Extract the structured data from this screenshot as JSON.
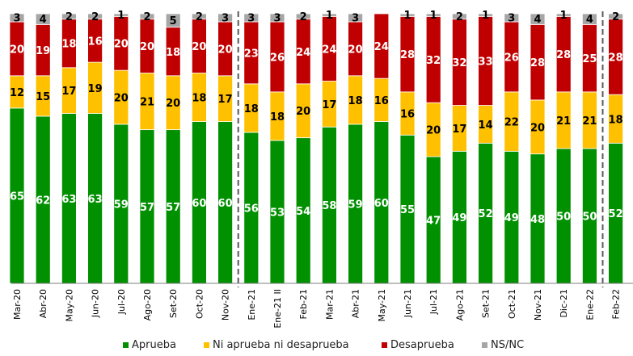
{
  "chart_data": {
    "type": "bar",
    "stacked": true,
    "orientation": "vertical",
    "title": "",
    "xlabel": "",
    "ylabel": "",
    "ylim": [
      0,
      100
    ],
    "grid": false,
    "legend_position": "bottom",
    "categories": [
      "Mar-20",
      "Abr-20",
      "May-20",
      "Jun-20",
      "Jul-20",
      "Ago-20",
      "Set-20",
      "Oct-20",
      "Nov-20",
      "Ene-21",
      "Ene-21 II",
      "Feb-21",
      "Mar-21",
      "Abr-21",
      "May-21",
      "Jun-21",
      "Jul-21",
      "Ago-21",
      "Set-21",
      "Oct-21",
      "Nov-21",
      "Dic-21",
      "Ene-22",
      "Feb-22"
    ],
    "separators_after": [
      "Nov-20",
      "Ene-22"
    ],
    "series": [
      {
        "name": "Aprueba",
        "color": "#009000",
        "label_color": "#ffffff",
        "values": [
          65,
          62,
          63,
          63,
          59,
          57,
          57,
          60,
          60,
          56,
          53,
          54,
          58,
          59,
          60,
          55,
          47,
          49,
          52,
          49,
          48,
          50,
          50,
          52
        ]
      },
      {
        "name": "Ni aprueba ni desaprueba",
        "color": "#ffc000",
        "label_color": "#000000",
        "values": [
          12,
          15,
          17,
          19,
          20,
          21,
          20,
          18,
          17,
          18,
          18,
          20,
          17,
          18,
          16,
          16,
          20,
          17,
          14,
          22,
          20,
          21,
          21,
          18
        ]
      },
      {
        "name": "Desaprueba",
        "color": "#c00000",
        "label_color": "#ffffff",
        "values": [
          20,
          19,
          18,
          16,
          20,
          20,
          18,
          20,
          20,
          23,
          26,
          24,
          24,
          20,
          24,
          28,
          32,
          32,
          33,
          26,
          28,
          28,
          25,
          28
        ]
      },
      {
        "name": "NS/NC",
        "color": "#a6a6a6",
        "label_color": "#000000",
        "values": [
          3,
          4,
          2,
          2,
          1,
          2,
          5,
          2,
          3,
          3,
          3,
          2,
          1,
          3,
          0,
          1,
          1,
          2,
          1,
          3,
          4,
          1,
          4,
          2
        ]
      }
    ]
  }
}
